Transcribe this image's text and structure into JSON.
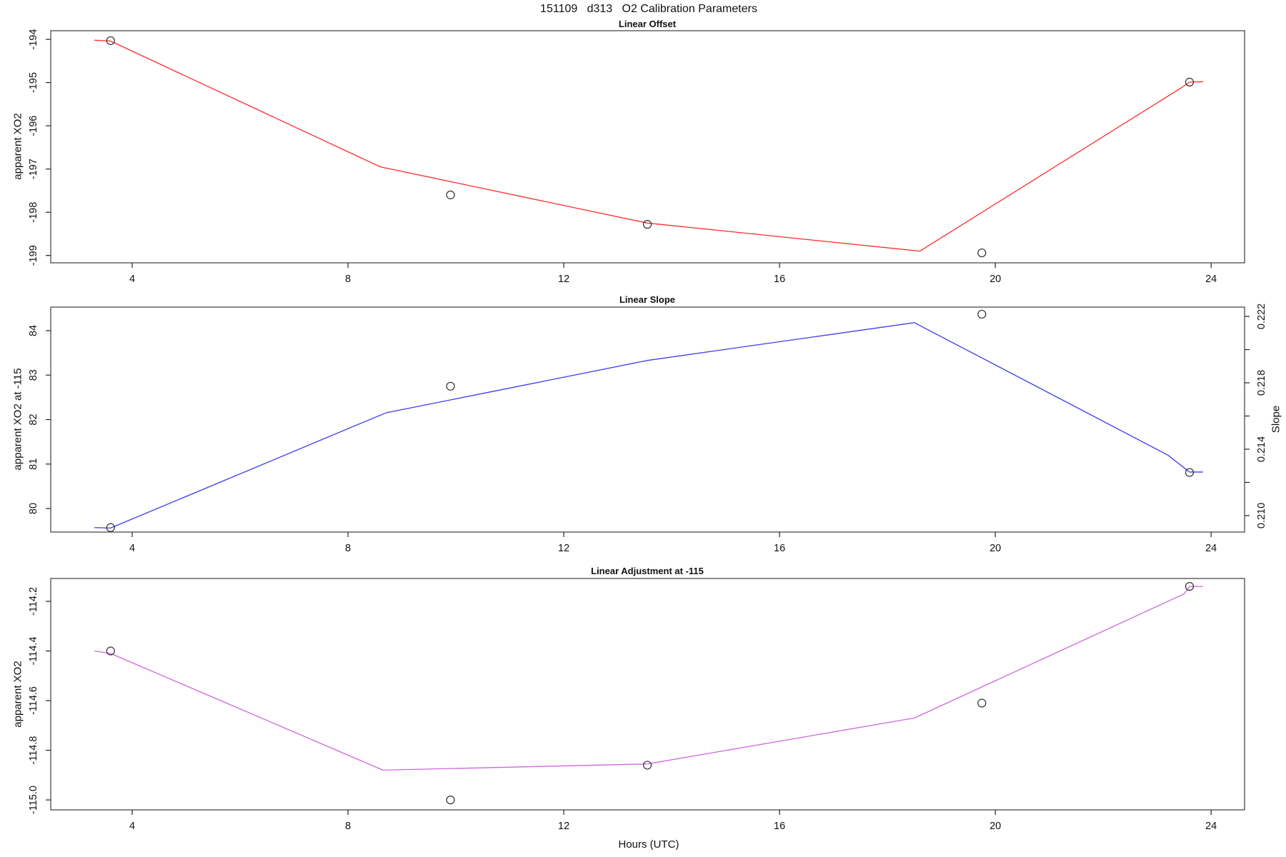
{
  "figure": {
    "title": "151109   d313   O2 Calibration Parameters",
    "xlabel": "Hours (UTC)",
    "background": "#ffffff",
    "box_color": "#3c3c3c",
    "tick_color": "#222222",
    "marker_color": "#2f2f2f"
  },
  "chart_data": [
    {
      "type": "line",
      "title": "Linear Offset",
      "ylabel": "apparent XO2",
      "series_color": "#ff2b2b",
      "grid": false,
      "legend": "none",
      "xlim": [
        2.49,
        24.62
      ],
      "ylim": [
        -199.17,
        -193.8
      ],
      "x_ticks": [
        4,
        8,
        12,
        16,
        20,
        24
      ],
      "x_tick_labels": [
        "4",
        "8",
        "12",
        "16",
        "20",
        "24"
      ],
      "y_ticks": [
        -194,
        -195,
        -196,
        -197,
        -198,
        -199
      ],
      "y_tick_labels": [
        "-194",
        "-195",
        "-196",
        "-197",
        "-198",
        "-199"
      ],
      "points": {
        "x": [
          3.6,
          9.9,
          13.55,
          19.75,
          23.6
        ],
        "y": [
          -194.03,
          -197.6,
          -198.28,
          -198.94,
          -194.99
        ]
      },
      "fit_line": {
        "x": [
          3.3,
          3.6,
          8.6,
          13.55,
          18.6,
          23.45,
          23.6,
          23.85
        ],
        "y": [
          -194.02,
          -194.04,
          -196.95,
          -198.25,
          -198.9,
          -195.12,
          -194.99,
          -194.98
        ]
      }
    },
    {
      "type": "line",
      "title": "Linear Slope",
      "ylabel": "apparent XO2 at -115",
      "y2label": "Slope",
      "series_color": "#3b3bf0",
      "grid": false,
      "legend": "none",
      "xlim": [
        2.49,
        24.62
      ],
      "ylim": [
        79.47,
        84.53
      ],
      "y2lim": [
        0.20901,
        0.22256
      ],
      "x_ticks": [
        4,
        8,
        12,
        16,
        20,
        24
      ],
      "x_tick_labels": [
        "4",
        "8",
        "12",
        "16",
        "20",
        "24"
      ],
      "y_ticks": [
        80,
        81,
        82,
        83,
        84
      ],
      "y_tick_labels": [
        "80",
        "81",
        "82",
        "83",
        "84"
      ],
      "y2_ticks": [
        0.21,
        0.212,
        0.214,
        0.216,
        0.218,
        0.22,
        0.222
      ],
      "y2_tick_labels": [
        "0.210",
        "",
        "0.214",
        "",
        "0.218",
        "",
        "0.222"
      ],
      "points": {
        "x": [
          3.6,
          9.9,
          19.75,
          23.6
        ],
        "y": [
          79.57,
          82.75,
          84.37,
          80.81
        ],
        "y2": [
          0.2093,
          0.2178,
          0.2221,
          0.2126
        ]
      },
      "fit_line": {
        "x": [
          3.3,
          3.6,
          8.7,
          13.55,
          18.5,
          23.2,
          23.6,
          23.85
        ],
        "y": [
          79.57,
          79.56,
          82.15,
          83.33,
          84.18,
          81.2,
          80.82,
          80.82
        ]
      }
    },
    {
      "type": "line",
      "title": "Linear Adjustment at -115",
      "ylabel": "apparent XO2",
      "series_color": "#cf67dd",
      "grid": false,
      "legend": "none",
      "xlim": [
        2.49,
        24.62
      ],
      "ylim": [
        -115.04,
        -114.108
      ],
      "x_ticks": [
        4,
        8,
        12,
        16,
        20,
        24
      ],
      "x_tick_labels": [
        "4",
        "8",
        "12",
        "16",
        "20",
        "24"
      ],
      "y_ticks": [
        -114.2,
        -114.4,
        -114.6,
        -114.8,
        -115.0
      ],
      "y_tick_labels": [
        "-114.2",
        "-114.4",
        "-114.6",
        "-114.8",
        "-115.0"
      ],
      "points": {
        "x": [
          3.6,
          9.9,
          13.55,
          19.75,
          23.6
        ],
        "y": [
          -114.4,
          -115.0,
          -114.86,
          -114.61,
          -114.14
        ]
      },
      "fit_line": {
        "x": [
          3.3,
          3.6,
          8.65,
          13.55,
          18.5,
          23.5,
          23.6,
          23.85
        ],
        "y": [
          -114.4,
          -114.41,
          -114.88,
          -114.855,
          -114.67,
          -114.17,
          -114.14,
          -114.14
        ]
      }
    }
  ]
}
